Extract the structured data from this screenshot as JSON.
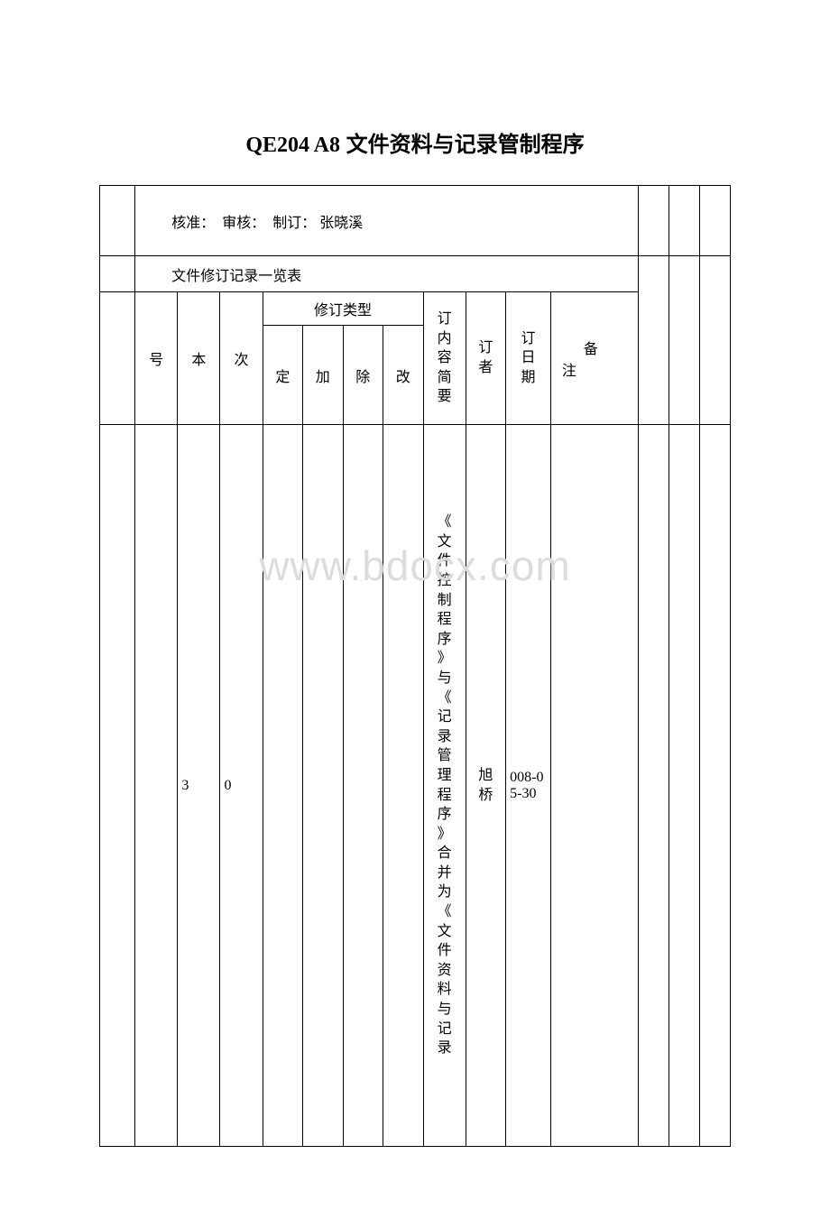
{
  "colors": {
    "background": "#ffffff",
    "border": "#000000",
    "text": "#000000",
    "watermark": "#dcdcdc"
  },
  "typography": {
    "title_fontsize": 24,
    "title_weight": "bold",
    "body_fontsize": 16,
    "header_fontsize": 15
  },
  "watermark": "www.bdocx.com",
  "title": {
    "code": "QE204 A8",
    "text": "文件资料与记录管制程序"
  },
  "approval": {
    "approve_label": "核准：",
    "review_label": "审核：",
    "prepare_label": "制订：",
    "preparer": "张晓溪"
  },
  "subtitle": "文件修订记录一览表",
  "headers": {
    "seq": "号",
    "version": "本",
    "rev": "次",
    "type_group": "修订类型",
    "type_define": "定",
    "type_add": "加",
    "type_remove": "除",
    "type_change": "改",
    "summary": "订内容简要",
    "author": "订者",
    "date": "订日期",
    "notes": "备",
    "notes2": "注"
  },
  "row": {
    "seq": "",
    "version": "3",
    "rev": "0",
    "type_define": "",
    "type_add": "",
    "type_remove": "",
    "type_change": "",
    "summary": "《文件控制程序》与《记录管理程序》合并为《文件资料与记录",
    "author": "旭桥",
    "date": "008-05-30",
    "notes": ""
  }
}
